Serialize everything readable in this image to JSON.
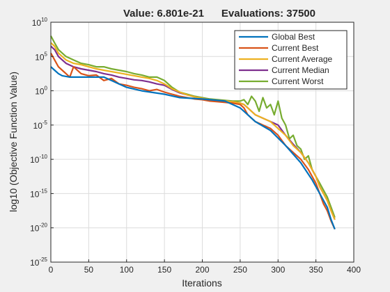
{
  "chart_data": {
    "type": "line",
    "title": "Value: 6.801e-21      Evaluations: 37500",
    "xlabel": "Iterations",
    "ylabel": "log10 (Objective Function Value)",
    "xlim": [
      0,
      400
    ],
    "ylim_exponent": [
      -25,
      10
    ],
    "y_scale": "log",
    "x_ticks": [
      0,
      50,
      100,
      150,
      200,
      250,
      300,
      350,
      400
    ],
    "y_ticks": [
      {
        "base": "10",
        "exp": "10",
        "value": 10
      },
      {
        "base": "10",
        "exp": "5",
        "value": 5
      },
      {
        "base": "10",
        "exp": "0",
        "value": 0
      },
      {
        "base": "10",
        "exp": "-5",
        "value": -5
      },
      {
        "base": "10",
        "exp": "-10",
        "value": -10
      },
      {
        "base": "10",
        "exp": "-15",
        "value": -15
      },
      {
        "base": "10",
        "exp": "-20",
        "value": -20
      },
      {
        "base": "10",
        "exp": "-25",
        "value": -25
      }
    ],
    "grid": true,
    "legend_position": "top-right",
    "series": [
      {
        "name": "Global Best",
        "color": "#0072bd",
        "x": [
          0,
          5,
          10,
          15,
          20,
          25,
          28,
          30,
          50,
          70,
          80,
          90,
          100,
          120,
          150,
          170,
          200,
          230,
          250,
          270,
          290,
          310,
          330,
          345,
          355,
          365,
          370,
          375
        ],
        "log10_values": [
          3.5,
          3.0,
          2.5,
          2.2,
          2.1,
          2.0,
          2.0,
          2.0,
          2.0,
          2.0,
          1.5,
          1.0,
          0.5,
          0.0,
          -0.5,
          -1.0,
          -1.2,
          -1.5,
          -2.5,
          -4.5,
          -5.8,
          -8.0,
          -10.5,
          -13.0,
          -15.0,
          -17.0,
          -18.8,
          -20.2
        ]
      },
      {
        "name": "Current Best",
        "color": "#d95319",
        "x": [
          0,
          5,
          10,
          15,
          20,
          25,
          30,
          40,
          50,
          60,
          70,
          80,
          90,
          100,
          110,
          120,
          130,
          140,
          150,
          160,
          170,
          180,
          190,
          200,
          210,
          220,
          230,
          240,
          250,
          255,
          260,
          265,
          270,
          280,
          290,
          300,
          310,
          320,
          330,
          340,
          345,
          350,
          355,
          360,
          365,
          370,
          375
        ],
        "log10_values": [
          5.5,
          4.5,
          3.5,
          3.0,
          2.5,
          2.0,
          3.5,
          2.5,
          2.2,
          2.3,
          1.5,
          1.8,
          1.0,
          0.8,
          0.5,
          0.3,
          0.0,
          0.2,
          -0.2,
          -0.5,
          -0.8,
          -1.0,
          -1.2,
          -1.3,
          -1.5,
          -1.6,
          -1.7,
          -1.8,
          -2.0,
          -2.5,
          -3.5,
          -4.0,
          -4.5,
          -5.0,
          -5.5,
          -6.5,
          -8.0,
          -9.0,
          -10.0,
          -11.5,
          -12.5,
          -13.5,
          -15.0,
          -16.5,
          -17.5,
          -19.0,
          -20.2
        ]
      },
      {
        "name": "Current Average",
        "color": "#edb120",
        "x": [
          0,
          5,
          10,
          20,
          30,
          40,
          50,
          60,
          70,
          80,
          90,
          100,
          110,
          120,
          130,
          140,
          150,
          160,
          170,
          180,
          190,
          200,
          210,
          220,
          230,
          240,
          250,
          255,
          260,
          270,
          280,
          290,
          300,
          310,
          320,
          330,
          340,
          350,
          355,
          360,
          365,
          370,
          375
        ],
        "log10_values": [
          7.0,
          6.5,
          5.5,
          4.5,
          4.0,
          3.8,
          3.5,
          3.2,
          3.0,
          2.8,
          2.6,
          2.4,
          2.2,
          2.0,
          1.8,
          1.5,
          1.0,
          0.3,
          -0.2,
          -0.6,
          -0.9,
          -1.1,
          -1.3,
          -1.4,
          -1.5,
          -1.6,
          -1.8,
          -2.0,
          -2.5,
          -3.5,
          -4.0,
          -4.5,
          -5.5,
          -6.5,
          -8.0,
          -9.0,
          -10.5,
          -12.5,
          -14.0,
          -15.0,
          -16.0,
          -17.5,
          -18.8
        ]
      },
      {
        "name": "Current Median",
        "color": "#7e2f8e",
        "x": [
          0,
          5,
          10,
          20,
          30,
          40,
          50,
          60,
          70,
          80,
          90,
          100,
          110,
          120,
          130,
          140,
          150,
          160,
          170,
          180,
          190,
          200,
          210,
          220,
          230,
          240,
          250,
          255,
          260,
          270,
          280,
          290,
          300,
          310,
          320,
          330,
          340,
          350,
          355,
          360,
          365,
          370,
          375
        ],
        "log10_values": [
          6.5,
          6.0,
          5.0,
          4.0,
          3.5,
          3.2,
          3.0,
          2.8,
          2.5,
          2.3,
          2.0,
          1.8,
          1.6,
          1.5,
          1.3,
          1.0,
          0.8,
          0.2,
          -0.3,
          -0.6,
          -0.9,
          -1.1,
          -1.3,
          -1.4,
          -1.5,
          -1.6,
          -1.8,
          -2.0,
          -2.5,
          -3.5,
          -4.0,
          -4.5,
          -5.0,
          -6.5,
          -7.8,
          -9.0,
          -10.5,
          -12.5,
          -14.0,
          -15.0,
          -16.0,
          -17.5,
          -18.8
        ]
      },
      {
        "name": "Current Worst",
        "color": "#77ac30",
        "x": [
          0,
          5,
          10,
          20,
          30,
          40,
          50,
          60,
          70,
          80,
          90,
          100,
          110,
          120,
          130,
          140,
          150,
          160,
          170,
          180,
          190,
          200,
          210,
          220,
          230,
          240,
          250,
          255,
          260,
          265,
          270,
          275,
          280,
          285,
          290,
          295,
          300,
          305,
          310,
          315,
          320,
          325,
          330,
          335,
          340,
          345,
          350,
          355,
          360,
          365,
          370,
          375
        ],
        "log10_values": [
          8.0,
          7.0,
          6.0,
          5.0,
          4.5,
          4.0,
          3.8,
          3.5,
          3.5,
          3.2,
          3.0,
          2.8,
          2.5,
          2.3,
          2.0,
          2.0,
          1.5,
          0.5,
          -0.2,
          -0.5,
          -0.8,
          -1.0,
          -1.2,
          -1.3,
          -1.4,
          -1.5,
          -1.5,
          -1.3,
          -2.0,
          -0.8,
          -1.5,
          -3.0,
          -1.0,
          -2.5,
          -2.0,
          -3.5,
          -1.5,
          -4.0,
          -5.0,
          -7.0,
          -6.5,
          -8.0,
          -8.5,
          -10.0,
          -9.5,
          -11.5,
          -12.5,
          -13.5,
          -14.5,
          -15.5,
          -17.0,
          -18.5
        ]
      }
    ]
  }
}
